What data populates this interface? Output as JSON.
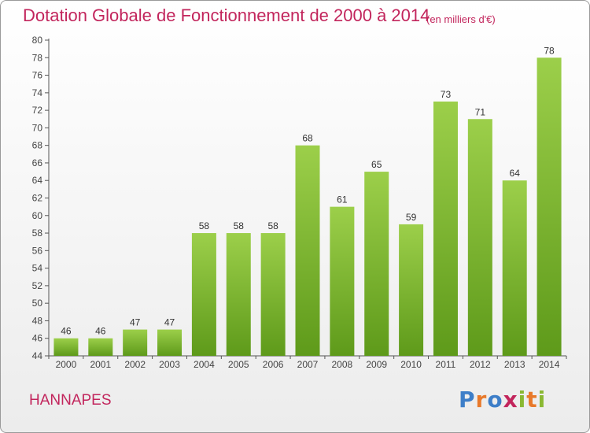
{
  "title": "Dotation Globale de Fonctionnement de 2000 à 2014",
  "subtitle": "(en milliers d'€)",
  "commune": "HANNAPES",
  "logo": {
    "text": "Proxiti",
    "letter_colors": [
      "#3d7ec8",
      "#e8792a",
      "#3d7ec8",
      "#c2255c",
      "#8ab832",
      "#e8792a",
      "#8ab832"
    ]
  },
  "colors": {
    "title": "#c2255c",
    "bar_top": "#9ccf4a",
    "bar_bottom": "#5e9a1a"
  },
  "chart_data": {
    "type": "bar",
    "categories": [
      "2000",
      "2001",
      "2002",
      "2003",
      "2004",
      "2005",
      "2006",
      "2007",
      "2008",
      "2009",
      "2010",
      "2011",
      "2012",
      "2013",
      "2014"
    ],
    "values": [
      46,
      46,
      47,
      47,
      58,
      58,
      58,
      68,
      61,
      65,
      59,
      73,
      71,
      64,
      78
    ],
    "ylim": [
      44,
      80
    ],
    "yticks": [
      44,
      46,
      48,
      50,
      52,
      54,
      56,
      58,
      60,
      62,
      64,
      66,
      68,
      70,
      72,
      74,
      76,
      78,
      80
    ],
    "grid": false,
    "data_labels": true
  }
}
